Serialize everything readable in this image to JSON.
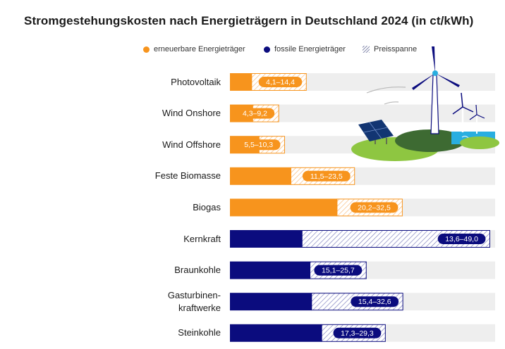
{
  "chart_data": {
    "type": "bar",
    "title": "Stromgestehungskosten nach Energieträgern in Deutschland 2024 (in ct/kWh)",
    "legend": [
      {
        "key": "renewable",
        "label": "erneuerbare Energieträger",
        "color": "#f7941d"
      },
      {
        "key": "fossil",
        "label": "fossile Energieträger",
        "color": "#0b0c7e"
      },
      {
        "key": "range",
        "label": "Preisspanne"
      }
    ],
    "xlim": [
      0,
      50
    ],
    "series": [
      {
        "category": "Photovoltaik",
        "group": "renewable",
        "min": 4.1,
        "max": 14.4,
        "label": "4,1–14,4"
      },
      {
        "category": "Wind Onshore",
        "group": "renewable",
        "min": 4.3,
        "max": 9.2,
        "label": "4,3–9,2"
      },
      {
        "category": "Wind Offshore",
        "group": "renewable",
        "min": 5.5,
        "max": 10.3,
        "label": "5,5–10,3"
      },
      {
        "category": "Feste Biomasse",
        "group": "renewable",
        "min": 11.5,
        "max": 23.5,
        "label": "11,5–23,5"
      },
      {
        "category": "Biogas",
        "group": "renewable",
        "min": 20.2,
        "max": 32.5,
        "label": "20,2–32,5"
      },
      {
        "category": "Kernkraft",
        "group": "fossil",
        "min": 13.6,
        "max": 49.0,
        "label": "13,6–49,0"
      },
      {
        "category": "Braunkohle",
        "group": "fossil",
        "min": 15.1,
        "max": 25.7,
        "label": "15,1–25,7"
      },
      {
        "category": "Gasturbinen-\nkraftwerke",
        "group": "fossil",
        "min": 15.4,
        "max": 32.6,
        "label": "15,4–32,6"
      },
      {
        "category": "Steinkohle",
        "group": "fossil",
        "min": 17.3,
        "max": 29.3,
        "label": "17,3–29,3"
      }
    ]
  },
  "colors": {
    "renewable": "#f7941d",
    "fossil": "#0b0c7e",
    "track": "#eeeeee"
  }
}
